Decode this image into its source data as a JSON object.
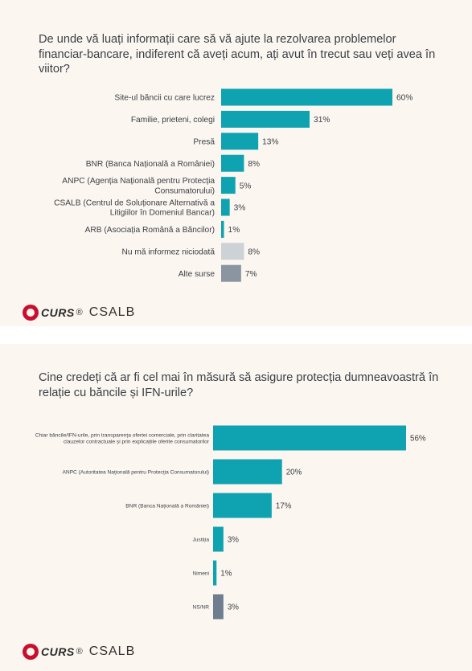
{
  "logos": {
    "curs": "CURS",
    "reg": "®",
    "csalb": "CSALB"
  },
  "panels": [
    {
      "question": "De unde vă luați informații care să vă ajute la rezolvarea problemelor financiar-bancare, indiferent că aveți acum, ați avut în trecut sau veți avea în viitor?"
    },
    {
      "question": "Cine credeți că ar fi cel mai în măsură să asigure protecția dumneavoastră în relație cu băncile și IFN-urile?"
    }
  ],
  "colors": {
    "teal": "#0fa3b1",
    "light_gray": "#cdd2d6",
    "slate": "#8a95a1"
  },
  "chart_data": [
    {
      "type": "bar",
      "orientation": "horizontal",
      "categories": [
        "Site-ul băncii cu care lucrez",
        "Familie, prieteni, colegi",
        "Presă",
        "BNR (Banca Națională a României)",
        "ANPC (Agenția Națională pentru Protecția Consumatorului)",
        "CSALB (Centrul de Soluționare Alternativă a Litigiilor în Domeniul Bancar)",
        "ARB (Asociația Română a Băncilor)",
        "Nu mă informez niciodată",
        "Alte surse"
      ],
      "label_lines": [
        [
          "Site-ul băncii cu care lucrez"
        ],
        [
          "Familie, prieteni, colegi"
        ],
        [
          "Presă"
        ],
        [
          "BNR (Banca Națională a României)"
        ],
        [
          "ANPC (Agenția Națională pentru Protecția",
          "Consumatorului)"
        ],
        [
          "CSALB (Centrul de Soluționare Alternativă a",
          "Litigiilor în Domeniul Bancar)"
        ],
        [
          "ARB (Asociația Română a Băncilor)"
        ],
        [
          "Nu mă informez niciodată"
        ],
        [
          "Alte surse"
        ]
      ],
      "values": [
        60,
        31,
        13,
        8,
        5,
        3,
        1,
        8,
        7
      ],
      "value_labels": [
        "60%",
        "31%",
        "13%",
        "8%",
        "5%",
        "3%",
        "1%",
        "8%",
        "7%"
      ],
      "bar_colors": [
        "#0fa3b1",
        "#0fa3b1",
        "#0fa3b1",
        "#0fa3b1",
        "#0fa3b1",
        "#0fa3b1",
        "#0fa3b1",
        "#cdd2d6",
        "#8a95a1"
      ],
      "xlim": [
        0,
        100
      ],
      "unit": "%"
    },
    {
      "type": "bar",
      "orientation": "horizontal",
      "categories": [
        "Chiar băncile/IFN-urile, prin transparența ofertei comerciale, prin claritatea clauzelor contractuale și prin explicațiile oferite consumatorilor",
        "ANPC (Autoritatea Națională pentru Protecția Consumatorului)",
        "BNR (Banca Națională a României)",
        "Justiția",
        "Nimeni",
        "NS/NR"
      ],
      "label_lines": [
        [
          "Chiar băncile/IFN-urile, prin transparența ofertei comerciale, prin claritatea",
          "clauzelor contractuale și prin explicațiile oferite consumatorilor"
        ],
        [
          "ANPC (Autoritatea Națională pentru Protecția Consumatorului)"
        ],
        [
          "BNR (Banca Națională a României)"
        ],
        [
          "Justiția"
        ],
        [
          "Nimeni"
        ],
        [
          "NS/NR"
        ]
      ],
      "values": [
        56,
        20,
        17,
        3,
        1,
        3
      ],
      "value_labels": [
        "56%",
        "20%",
        "17%",
        "3%",
        "1%",
        "3%"
      ],
      "bar_colors": [
        "#0fa3b1",
        "#0fa3b1",
        "#0fa3b1",
        "#0fa3b1",
        "#0fa3b1",
        "#6f7e8f"
      ],
      "xlim": [
        0,
        100
      ],
      "unit": "%"
    }
  ]
}
